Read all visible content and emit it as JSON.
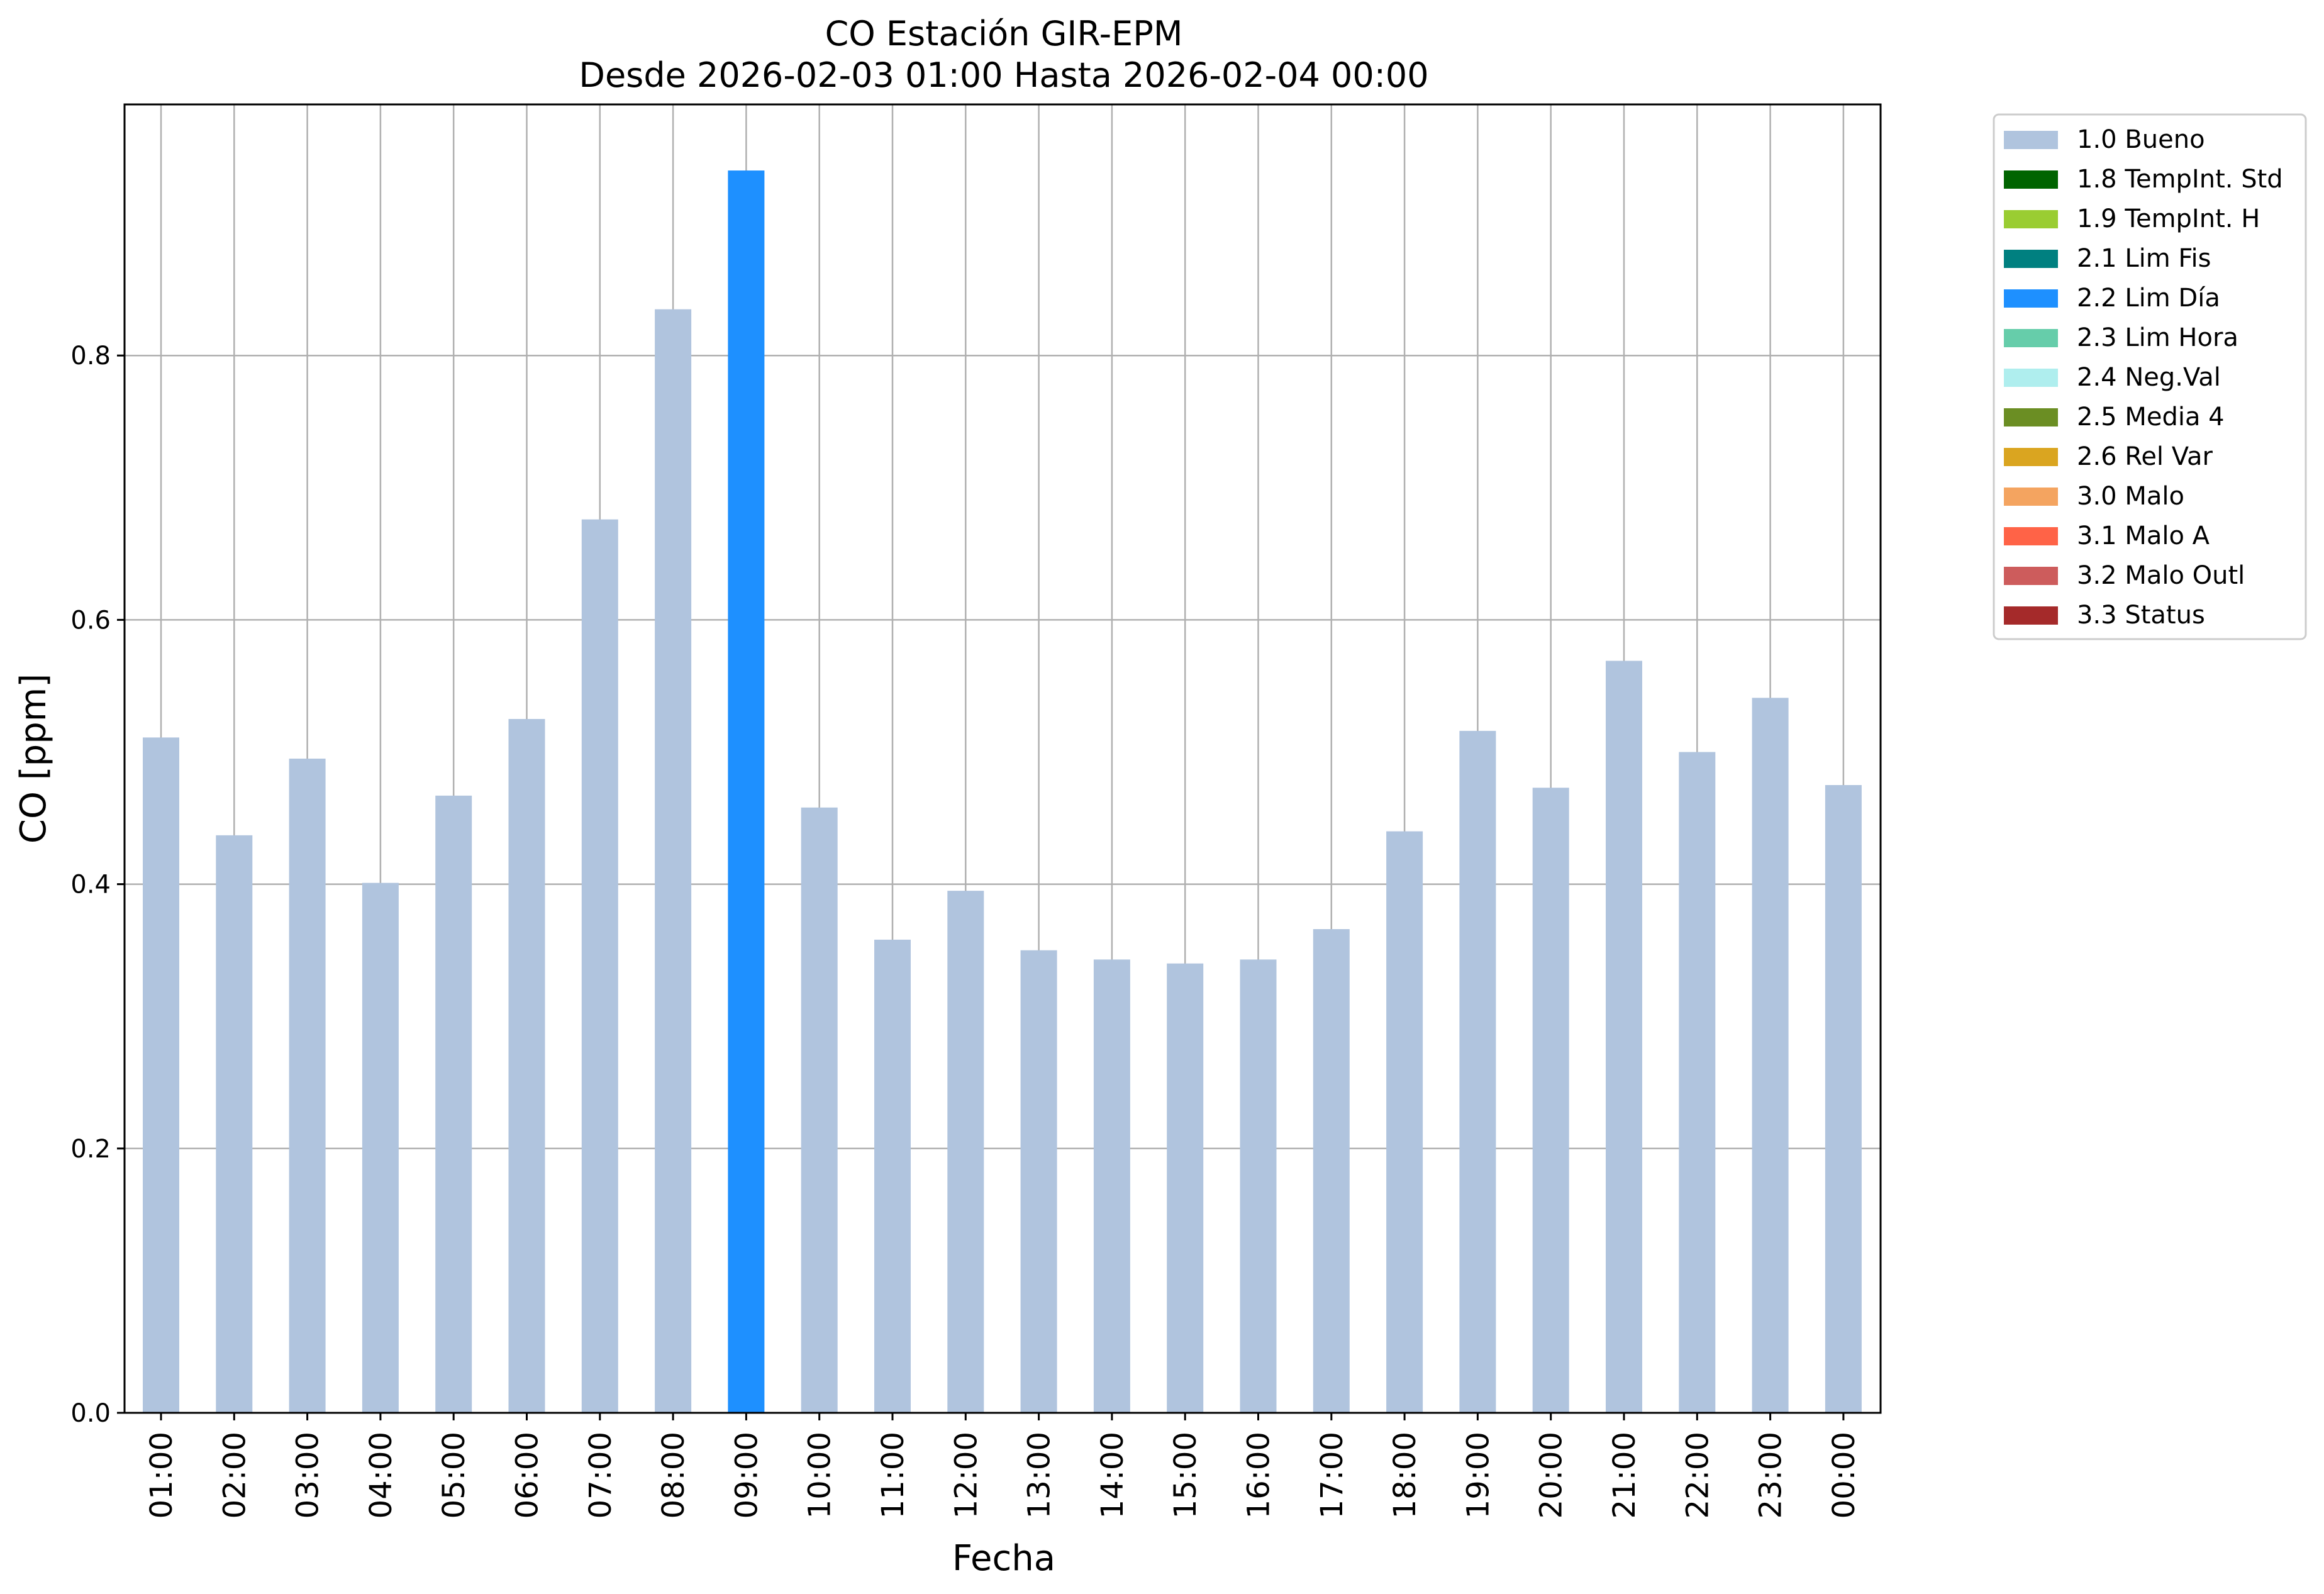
{
  "chart_data": {
    "type": "bar",
    "title": "CO Estación GIR-EPM",
    "subtitle": "Desde 2026-02-03 01:00 Hasta 2026-02-04 00:00",
    "xlabel": "Fecha",
    "ylabel": "CO [ppm]",
    "ylim": [
      0,
      0.99
    ],
    "yticks": [
      "0.0",
      "0.2",
      "0.4",
      "0.6",
      "0.8"
    ],
    "grid": true,
    "legend_position": "outside top-right",
    "categories": [
      "01:00",
      "02:00",
      "03:00",
      "04:00",
      "05:00",
      "06:00",
      "07:00",
      "08:00",
      "09:00",
      "10:00",
      "11:00",
      "12:00",
      "13:00",
      "14:00",
      "15:00",
      "16:00",
      "17:00",
      "18:00",
      "19:00",
      "20:00",
      "21:00",
      "22:00",
      "23:00",
      "00:00"
    ],
    "values": [
      0.511,
      0.437,
      0.495,
      0.401,
      0.467,
      0.525,
      0.676,
      0.835,
      0.94,
      0.458,
      0.358,
      0.395,
      0.35,
      0.343,
      0.34,
      0.343,
      0.366,
      0.44,
      0.516,
      0.473,
      0.569,
      0.5,
      0.541,
      0.475
    ],
    "flags": [
      "1.0 Bueno",
      "1.0 Bueno",
      "1.0 Bueno",
      "1.0 Bueno",
      "1.0 Bueno",
      "1.0 Bueno",
      "1.0 Bueno",
      "1.0 Bueno",
      "2.2 Lim Día",
      "1.0 Bueno",
      "1.0 Bueno",
      "1.0 Bueno",
      "1.0 Bueno",
      "1.0 Bueno",
      "1.0 Bueno",
      "1.0 Bueno",
      "1.0 Bueno",
      "1.0 Bueno",
      "1.0 Bueno",
      "1.0 Bueno",
      "1.0 Bueno",
      "1.0 Bueno",
      "1.0 Bueno",
      "1.0 Bueno"
    ],
    "legend": [
      {
        "label": "1.0 Bueno",
        "color": "#b0c4de"
      },
      {
        "label": "1.8 TempInt. Std",
        "color": "#006400"
      },
      {
        "label": "1.9 TempInt. H",
        "color": "#9acd32"
      },
      {
        "label": "2.1 Lim Fis",
        "color": "#008080"
      },
      {
        "label": "2.2 Lim Día",
        "color": "#1e90ff"
      },
      {
        "label": "2.3 Lim Hora",
        "color": "#66cdaa"
      },
      {
        "label": "2.4 Neg.Val",
        "color": "#afeeee"
      },
      {
        "label": "2.5 Media 4",
        "color": "#6b8e23"
      },
      {
        "label": "2.6 Rel Var",
        "color": "#daa520"
      },
      {
        "label": "3.0 Malo",
        "color": "#f4a460"
      },
      {
        "label": "3.1 Malo A",
        "color": "#ff6347"
      },
      {
        "label": "3.2 Malo Outl",
        "color": "#cd5c5c"
      },
      {
        "label": "3.3 Status",
        "color": "#a52a2a"
      }
    ]
  }
}
